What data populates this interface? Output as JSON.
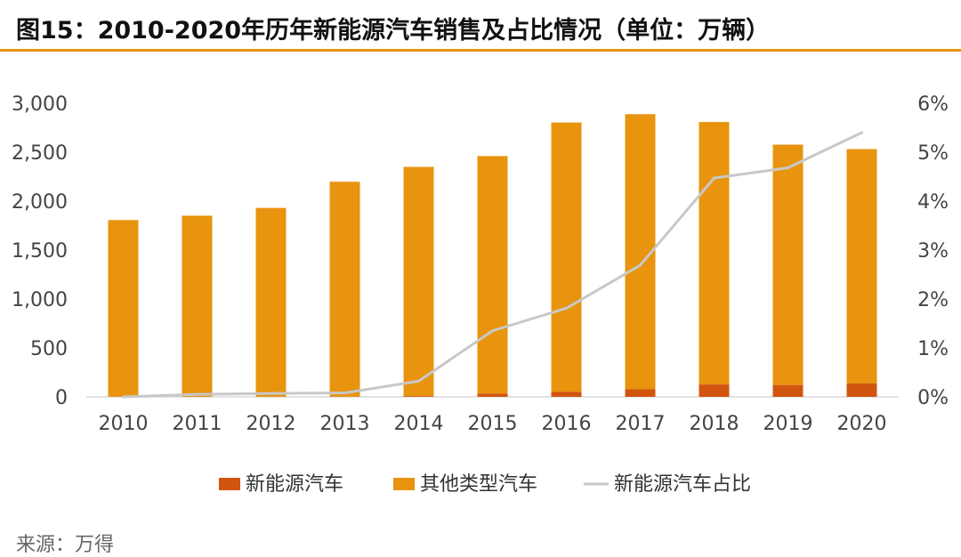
{
  "title": "图15：2010-2020年历年新能源汽车销售及占比情况（单位：万辆）",
  "source": "来源：万得",
  "colors": {
    "accent": "#E8940F",
    "nev_bar": "#D2550F",
    "other_bar": "#E8940F",
    "share_line": "#C8C8C8"
  },
  "chart_data": {
    "type": "bar",
    "categories": [
      "2010",
      "2011",
      "2012",
      "2013",
      "2014",
      "2015",
      "2016",
      "2017",
      "2018",
      "2019",
      "2020"
    ],
    "series": [
      {
        "name": "新能源汽车",
        "type": "bar",
        "stack": "total",
        "axis": "left",
        "values": [
          0.1,
          0.8,
          1.3,
          1.8,
          7.5,
          33,
          51,
          77,
          126,
          121,
          137
        ]
      },
      {
        "name": "其他类型汽车",
        "type": "bar",
        "stack": "total",
        "axis": "left",
        "values": [
          1806,
          1850,
          1929,
          2196,
          2342,
          2427,
          2752,
          2811,
          2682,
          2456,
          2394
        ]
      },
      {
        "name": "新能源汽车占比",
        "type": "line",
        "axis": "right",
        "values": [
          0.0,
          0.05,
          0.07,
          0.08,
          0.32,
          1.35,
          1.81,
          2.69,
          4.47,
          4.68,
          5.4
        ]
      }
    ],
    "y_left": {
      "min": 0,
      "max": 3000,
      "ticks": [
        0,
        500,
        1000,
        1500,
        2000,
        2500,
        3000
      ],
      "tick_labels": [
        "0",
        "500",
        "1,000",
        "1,500",
        "2,000",
        "2,500",
        "3,000"
      ]
    },
    "y_right": {
      "min": 0,
      "max": 6,
      "ticks": [
        0,
        1,
        2,
        3,
        4,
        5,
        6
      ],
      "tick_labels": [
        "0%",
        "1%",
        "2%",
        "3%",
        "4%",
        "5%",
        "6%"
      ]
    },
    "grid": false,
    "legend_position": "bottom"
  }
}
